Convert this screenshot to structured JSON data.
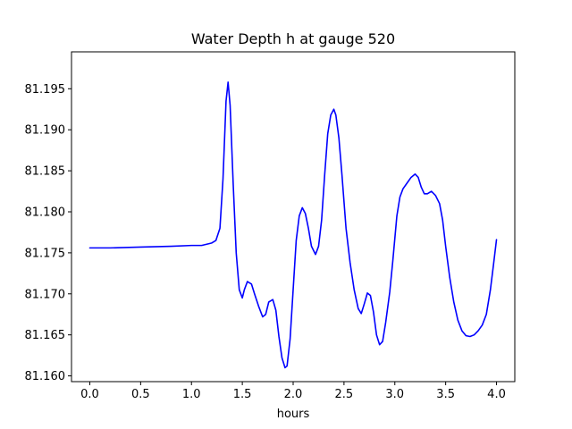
{
  "chart_data": {
    "type": "line",
    "title": "Water Depth h at gauge 520",
    "xlabel": "hours",
    "ylabel": "",
    "xlim": [
      -0.18,
      4.18
    ],
    "ylim": [
      81.1593,
      81.1995
    ],
    "xticks": [
      0.0,
      0.5,
      1.0,
      1.5,
      2.0,
      2.5,
      3.0,
      3.5,
      4.0
    ],
    "xtick_labels": [
      "0.0",
      "0.5",
      "1.0",
      "1.5",
      "2.0",
      "2.5",
      "3.0",
      "3.5",
      "4.0"
    ],
    "yticks": [
      81.16,
      81.165,
      81.17,
      81.175,
      81.18,
      81.185,
      81.19,
      81.195
    ],
    "ytick_labels": [
      "81.160",
      "81.165",
      "81.170",
      "81.175",
      "81.180",
      "81.185",
      "81.190",
      "81.195"
    ],
    "grid": false,
    "series": [
      {
        "name": "",
        "color": "#0000ff",
        "x": [
          0.0,
          0.2,
          0.5,
          0.8,
          1.0,
          1.1,
          1.2,
          1.24,
          1.28,
          1.31,
          1.34,
          1.36,
          1.38,
          1.41,
          1.44,
          1.47,
          1.5,
          1.52,
          1.55,
          1.59,
          1.62,
          1.66,
          1.7,
          1.73,
          1.76,
          1.8,
          1.83,
          1.86,
          1.89,
          1.92,
          1.94,
          1.97,
          2.0,
          2.03,
          2.06,
          2.09,
          2.12,
          2.15,
          2.18,
          2.22,
          2.25,
          2.28,
          2.31,
          2.34,
          2.37,
          2.4,
          2.42,
          2.45,
          2.48,
          2.52,
          2.56,
          2.6,
          2.64,
          2.67,
          2.7,
          2.73,
          2.76,
          2.79,
          2.82,
          2.85,
          2.88,
          2.91,
          2.95,
          2.98,
          3.02,
          3.05,
          3.08,
          3.12,
          3.16,
          3.2,
          3.23,
          3.26,
          3.29,
          3.32,
          3.36,
          3.4,
          3.44,
          3.47,
          3.5,
          3.54,
          3.58,
          3.62,
          3.66,
          3.7,
          3.74,
          3.78,
          3.82,
          3.86,
          3.9,
          3.94,
          3.97,
          4.0
        ],
        "values": [
          81.1756,
          81.1756,
          81.1757,
          81.1758,
          81.1759,
          81.1759,
          81.1762,
          81.1765,
          81.178,
          81.184,
          81.1935,
          81.1958,
          81.193,
          81.1835,
          81.175,
          81.1705,
          81.1695,
          81.1705,
          81.1715,
          81.1712,
          81.17,
          81.1685,
          81.1672,
          81.1675,
          81.169,
          81.1693,
          81.168,
          81.1648,
          81.1622,
          81.161,
          81.1612,
          81.1645,
          81.1705,
          81.1765,
          81.1795,
          81.1805,
          81.1798,
          81.178,
          81.1758,
          81.1748,
          81.1758,
          81.179,
          81.1845,
          81.1895,
          81.1918,
          81.1925,
          81.1918,
          81.189,
          81.1845,
          81.178,
          81.1738,
          81.1705,
          81.1682,
          81.1676,
          81.1688,
          81.1701,
          81.1698,
          81.1678,
          81.165,
          81.1638,
          81.1642,
          81.1665,
          81.1702,
          81.174,
          81.1795,
          81.1818,
          81.1828,
          81.1835,
          81.1842,
          81.1846,
          81.1842,
          81.183,
          81.1822,
          81.1822,
          81.1825,
          81.182,
          81.181,
          81.179,
          81.1758,
          81.172,
          81.169,
          81.1668,
          81.1655,
          81.1649,
          81.1648,
          81.165,
          81.1655,
          81.1662,
          81.1675,
          81.1705,
          81.1735,
          81.1766
        ]
      }
    ]
  }
}
